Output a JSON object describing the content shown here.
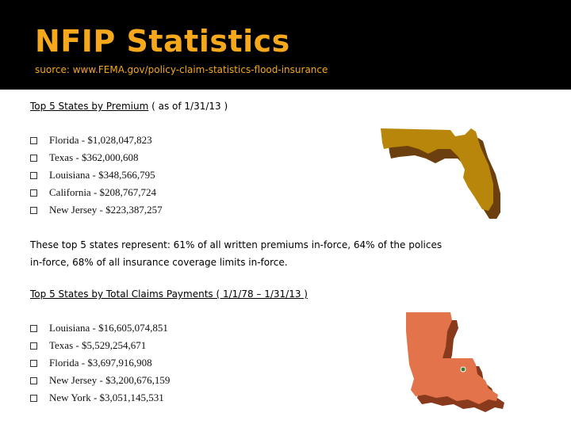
{
  "header": {
    "title": "NFIP Statistics",
    "subtitle": "suorce: www.FEMA.gov/policy-claim-statistics-flood-insurance"
  },
  "premium": {
    "heading_underlined": "Top 5 States by Premium",
    "heading_rest": " ( as of 1/31/13 )",
    "items": [
      "Florida - $1,028,047,823",
      "Texas - $362,000,608",
      "Louisiana - $348,566,795",
      "California - $208,767,724",
      "New Jersey - $223,387,257"
    ]
  },
  "summary": "These top 5 states represent: 61% of all written premiums in-force, 64% of the polices in-force, 68% of all insurance coverage limits in-force.",
  "claims": {
    "heading": "Top 5 States by Total Claims Payments ( 1/1/78 – 1/31/13 )",
    "items": [
      "Louisiana - $16,605,074,851",
      "Texas - $5,529,254,671",
      "Florida - $3,697,916,908",
      "New Jersey - $3,200,676,159",
      "New York - $3,051,145,531"
    ]
  },
  "colors": {
    "title": "#f5a81b",
    "florida_map": "#b8860b",
    "louisiana_map": "#e2734a"
  },
  "maps": [
    "florida-map",
    "louisiana-map"
  ]
}
